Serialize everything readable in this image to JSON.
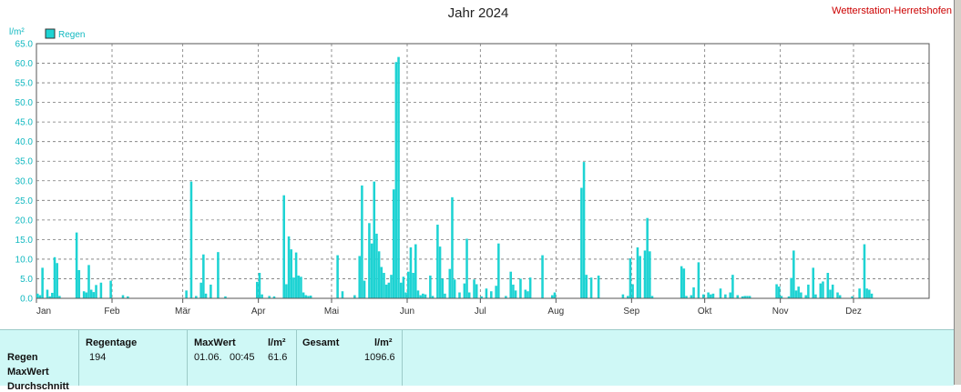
{
  "title": "Jahr 2024",
  "station": "Wetterstation-Herretshofen",
  "chart_data": {
    "type": "bar",
    "title": "Jahr 2024",
    "ylabel": "l/m²",
    "ylim": [
      0,
      65
    ],
    "yticks": [
      "0.0",
      "5.0",
      "10.0",
      "15.0",
      "20.0",
      "25.0",
      "30.0",
      "35.0",
      "40.0",
      "45.0",
      "50.0",
      "55.0",
      "60.0",
      "65.0"
    ],
    "xticks": [
      "Jan",
      "Feb",
      "Mär",
      "Apr",
      "Mai",
      "Jun",
      "Jul",
      "Aug",
      "Sep",
      "Okt",
      "Nov",
      "Dez"
    ],
    "legend": "top-left",
    "grid": true,
    "color": "#1dd3d3",
    "series": [
      {
        "name": "Regen",
        "points": [
          [
            1,
            1.2
          ],
          [
            2,
            0.8
          ],
          [
            3,
            7.8
          ],
          [
            5,
            2.2
          ],
          [
            6,
            0.5
          ],
          [
            7,
            1.4
          ],
          [
            8,
            10.5
          ],
          [
            9,
            9.0
          ],
          [
            10,
            0.6
          ],
          [
            17,
            16.8
          ],
          [
            18,
            7.2
          ],
          [
            20,
            1.8
          ],
          [
            21,
            1.5
          ],
          [
            22,
            8.5
          ],
          [
            23,
            2.2
          ],
          [
            24,
            1.6
          ],
          [
            25,
            3.4
          ],
          [
            27,
            4.0
          ],
          [
            31,
            4.5
          ],
          [
            36,
            0.8
          ],
          [
            38,
            0.5
          ],
          [
            62,
            2.0
          ],
          [
            64,
            29.8
          ],
          [
            66,
            0.6
          ],
          [
            68,
            4.0
          ],
          [
            69,
            11.2
          ],
          [
            70,
            1.2
          ],
          [
            72,
            3.5
          ],
          [
            75,
            11.8
          ],
          [
            78,
            0.5
          ],
          [
            91,
            4.2
          ],
          [
            92,
            6.5
          ],
          [
            93,
            1.0
          ],
          [
            96,
            0.6
          ],
          [
            98,
            0.5
          ],
          [
            102,
            26.3
          ],
          [
            103,
            3.6
          ],
          [
            104,
            15.8
          ],
          [
            105,
            12.5
          ],
          [
            106,
            5.3
          ],
          [
            107,
            11.7
          ],
          [
            108,
            5.8
          ],
          [
            109,
            5.5
          ],
          [
            110,
            1.5
          ],
          [
            111,
            0.8
          ],
          [
            112,
            0.6
          ],
          [
            113,
            0.7
          ],
          [
            124,
            11.0
          ],
          [
            126,
            1.8
          ],
          [
            131,
            0.8
          ],
          [
            133,
            10.8
          ],
          [
            134,
            28.8
          ],
          [
            135,
            4.5
          ],
          [
            137,
            19.2
          ],
          [
            138,
            14.0
          ],
          [
            139,
            29.8
          ],
          [
            140,
            16.5
          ],
          [
            141,
            12.0
          ],
          [
            142,
            8.0
          ],
          [
            143,
            6.5
          ],
          [
            144,
            3.5
          ],
          [
            145,
            4.0
          ],
          [
            146,
            6.0
          ],
          [
            147,
            27.8
          ],
          [
            148,
            60.3
          ],
          [
            149,
            61.6
          ],
          [
            150,
            4.0
          ],
          [
            151,
            5.5
          ],
          [
            152,
            1.5
          ],
          [
            153,
            6.8
          ],
          [
            154,
            13.0
          ],
          [
            155,
            6.5
          ],
          [
            156,
            13.8
          ],
          [
            157,
            2.0
          ],
          [
            158,
            0.8
          ],
          [
            159,
            1.2
          ],
          [
            160,
            1.0
          ],
          [
            162,
            5.8
          ],
          [
            163,
            0.6
          ],
          [
            165,
            18.8
          ],
          [
            166,
            13.2
          ],
          [
            167,
            5.0
          ],
          [
            168,
            1.2
          ],
          [
            170,
            7.5
          ],
          [
            171,
            25.8
          ],
          [
            172,
            4.8
          ],
          [
            174,
            1.5
          ],
          [
            176,
            3.8
          ],
          [
            177,
            15.2
          ],
          [
            178,
            1.5
          ],
          [
            180,
            4.8
          ],
          [
            181,
            3.6
          ],
          [
            183,
            0.5
          ],
          [
            185,
            2.5
          ],
          [
            187,
            1.8
          ],
          [
            189,
            3.2
          ],
          [
            190,
            14.0
          ],
          [
            193,
            0.6
          ],
          [
            195,
            6.8
          ],
          [
            196,
            3.5
          ],
          [
            197,
            2.0
          ],
          [
            199,
            5.0
          ],
          [
            201,
            2.2
          ],
          [
            202,
            1.8
          ],
          [
            203,
            5.3
          ],
          [
            208,
            11.0
          ],
          [
            212,
            0.8
          ],
          [
            213,
            1.5
          ],
          [
            224,
            28.2
          ],
          [
            225,
            34.8
          ],
          [
            226,
            6.0
          ],
          [
            228,
            5.3
          ],
          [
            231,
            5.8
          ],
          [
            241,
            1.0
          ],
          [
            243,
            0.6
          ],
          [
            244,
            10.2
          ],
          [
            245,
            3.6
          ],
          [
            247,
            13.0
          ],
          [
            248,
            10.8
          ],
          [
            250,
            12.2
          ],
          [
            251,
            20.5
          ],
          [
            252,
            12.0
          ],
          [
            253,
            0.6
          ],
          [
            265,
            8.2
          ],
          [
            266,
            7.6
          ],
          [
            267,
            0.6
          ],
          [
            269,
            0.8
          ],
          [
            270,
            2.8
          ],
          [
            272,
            9.2
          ],
          [
            274,
            1.0
          ],
          [
            276,
            1.5
          ],
          [
            277,
            1.0
          ],
          [
            278,
            1.2
          ],
          [
            281,
            2.5
          ],
          [
            283,
            1.0
          ],
          [
            285,
            1.5
          ],
          [
            286,
            6.0
          ],
          [
            288,
            0.8
          ],
          [
            290,
            0.5
          ],
          [
            291,
            0.6
          ],
          [
            292,
            0.6
          ],
          [
            293,
            0.6
          ],
          [
            304,
            3.6
          ],
          [
            305,
            3.0
          ],
          [
            306,
            0.6
          ],
          [
            309,
            0.5
          ],
          [
            310,
            5.2
          ],
          [
            311,
            12.2
          ],
          [
            312,
            2.0
          ],
          [
            313,
            3.0
          ],
          [
            314,
            1.5
          ],
          [
            316,
            0.8
          ],
          [
            317,
            3.5
          ],
          [
            319,
            7.8
          ],
          [
            320,
            1.0
          ],
          [
            322,
            3.8
          ],
          [
            323,
            4.3
          ],
          [
            325,
            6.5
          ],
          [
            326,
            2.2
          ],
          [
            327,
            3.5
          ],
          [
            329,
            1.5
          ],
          [
            330,
            0.8
          ],
          [
            335,
            0.5
          ],
          [
            338,
            2.5
          ],
          [
            340,
            13.8
          ],
          [
            341,
            2.5
          ],
          [
            342,
            2.2
          ],
          [
            343,
            1.2
          ]
        ]
      }
    ]
  },
  "stats": {
    "headers": {
      "regentage": "Regentage",
      "maxwert": "MaxWert",
      "unit1": "l/m²",
      "gesamt": "Gesamt",
      "unit2": "l/m²"
    },
    "row_labels": [
      "Regen",
      "MaxWert",
      "Durchschnitt"
    ],
    "regen": {
      "regentage": "194",
      "maxwert_date": "01.06.",
      "maxwert_time": "00:45",
      "maxwert_value": "61.6",
      "gesamt": "1096.6"
    }
  }
}
